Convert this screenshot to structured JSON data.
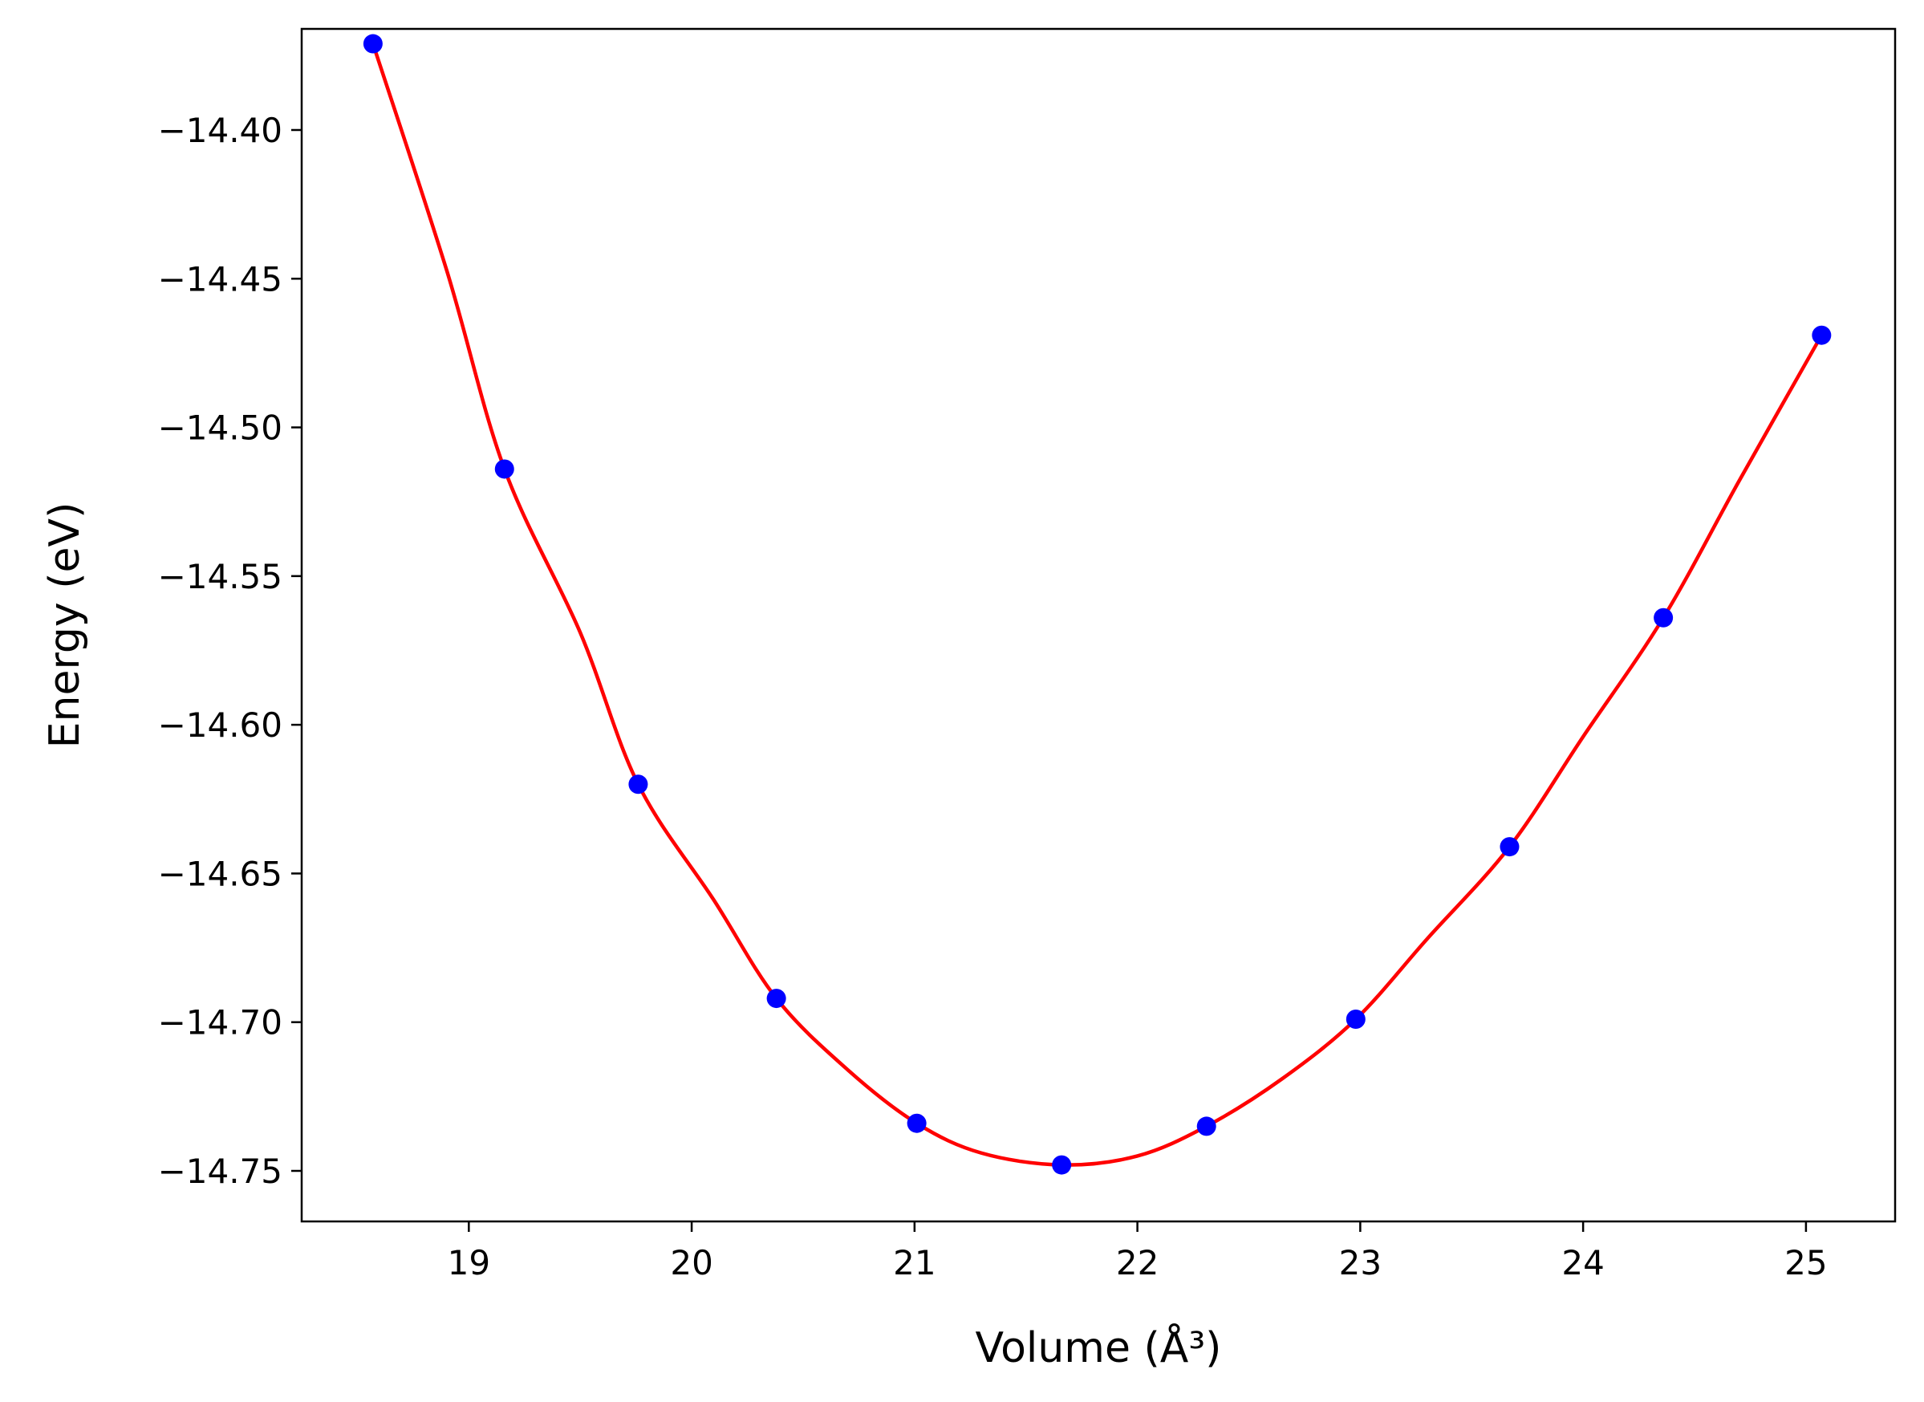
{
  "chart_data": {
    "type": "scatter",
    "xlabel": "Volume (Å³)",
    "ylabel": "Energy (eV)",
    "xlim": [
      18.25,
      25.4
    ],
    "ylim": [
      -14.767,
      -14.366
    ],
    "xticks": [
      19,
      20,
      21,
      22,
      23,
      24,
      25
    ],
    "yticks": [
      -14.4,
      -14.45,
      -14.5,
      -14.55,
      -14.6,
      -14.65,
      -14.7,
      -14.75
    ],
    "xtick_labels": [
      "19",
      "20",
      "21",
      "22",
      "23",
      "24",
      "25"
    ],
    "ytick_labels": [
      "−14.40",
      "−14.45",
      "−14.50",
      "−14.55",
      "−14.60",
      "−14.65",
      "−14.70",
      "−14.75"
    ],
    "grid": false,
    "legend": "none",
    "series": [
      {
        "kind": "points",
        "color": "#0000ff",
        "x": [
          18.57,
          19.16,
          19.76,
          20.38,
          21.01,
          21.66,
          22.31,
          22.98,
          23.67,
          24.36,
          25.07
        ],
        "y": [
          -14.371,
          -14.514,
          -14.62,
          -14.692,
          -14.734,
          -14.748,
          -14.735,
          -14.699,
          -14.641,
          -14.564,
          -14.469
        ]
      },
      {
        "kind": "fit-line",
        "color": "#ff0000",
        "x": [
          18.57,
          18.9,
          19.16,
          19.5,
          19.76,
          20.1,
          20.38,
          20.7,
          21.01,
          21.3,
          21.66,
          22.0,
          22.31,
          22.65,
          22.98,
          23.3,
          23.67,
          24.0,
          24.36,
          24.7,
          25.07
        ],
        "y": [
          -14.371,
          -14.447,
          -14.514,
          -14.569,
          -14.62,
          -14.659,
          -14.692,
          -14.716,
          -14.734,
          -14.744,
          -14.748,
          -14.745,
          -14.735,
          -14.719,
          -14.699,
          -14.672,
          -14.641,
          -14.604,
          -14.564,
          -14.518,
          -14.469
        ]
      }
    ]
  }
}
